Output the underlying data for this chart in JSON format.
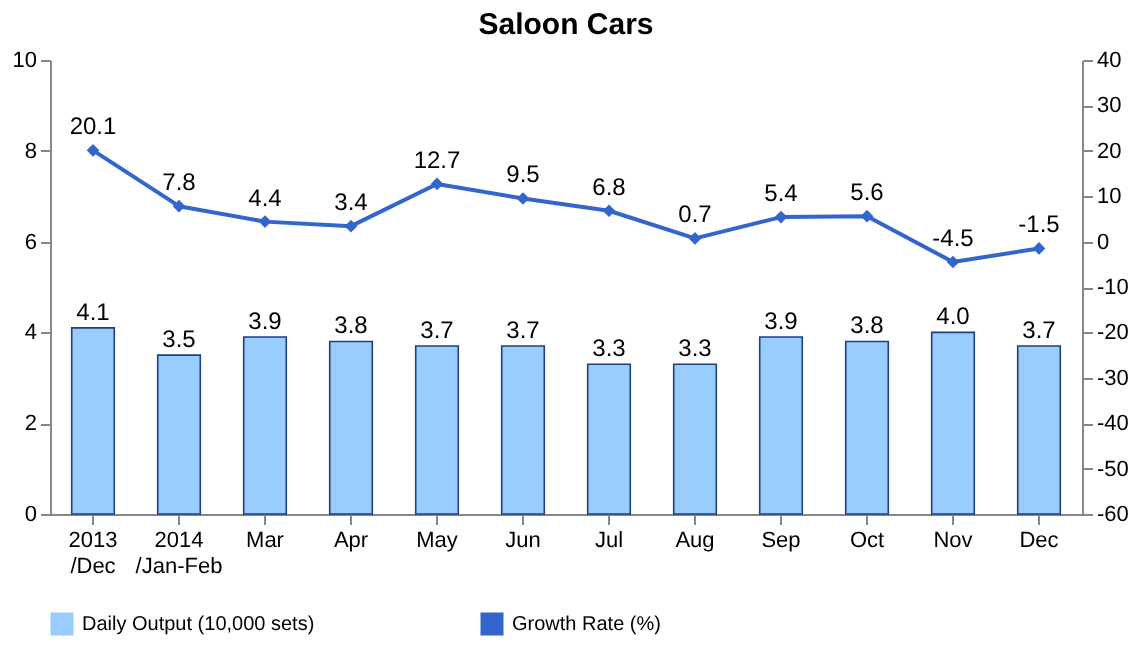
{
  "chart_data": {
    "type": "bar",
    "title": "Saloon Cars",
    "categories": [
      "2013\n/Dec",
      "2014\n/Jan-Feb",
      "Mar",
      "Apr",
      "May",
      "Jun",
      "Jul",
      "Aug",
      "Sep",
      "Oct",
      "Nov",
      "Dec"
    ],
    "series": [
      {
        "name": "Daily Output (10,000 sets)",
        "color": "#99ccff",
        "values": [
          4.1,
          3.5,
          3.9,
          3.8,
          3.7,
          3.7,
          3.3,
          3.3,
          3.9,
          3.8,
          4.0,
          3.7
        ],
        "value_labels": [
          "4.1",
          "3.5",
          "3.9",
          "3.8",
          "3.7",
          "3.7",
          "3.3",
          "3.3",
          "3.9",
          "3.8",
          "4.0",
          "3.7"
        ]
      },
      {
        "name": "Growth Rate (%)",
        "type": "line",
        "axis": "y2",
        "color": "#3366cc",
        "values": [
          20.1,
          7.8,
          4.4,
          3.4,
          12.7,
          9.5,
          6.8,
          0.7,
          5.4,
          5.6,
          -4.5,
          -1.5
        ],
        "value_labels": [
          "20.1",
          "7.8",
          "4.4",
          "3.4",
          "12.7",
          "9.5",
          "6.8",
          "0.7",
          "5.4",
          "5.6",
          "-4.5",
          "-1.5"
        ]
      }
    ],
    "ylim": [
      0,
      10
    ],
    "yticks": [
      0,
      2,
      4,
      6,
      8,
      10
    ],
    "y2lim": [
      -60,
      40
    ],
    "y2ticks": [
      -60,
      -50,
      -40,
      -30,
      -20,
      -10,
      0,
      10,
      20,
      30,
      40
    ],
    "marker": "diamond",
    "legend": "bottom",
    "grid": false
  }
}
